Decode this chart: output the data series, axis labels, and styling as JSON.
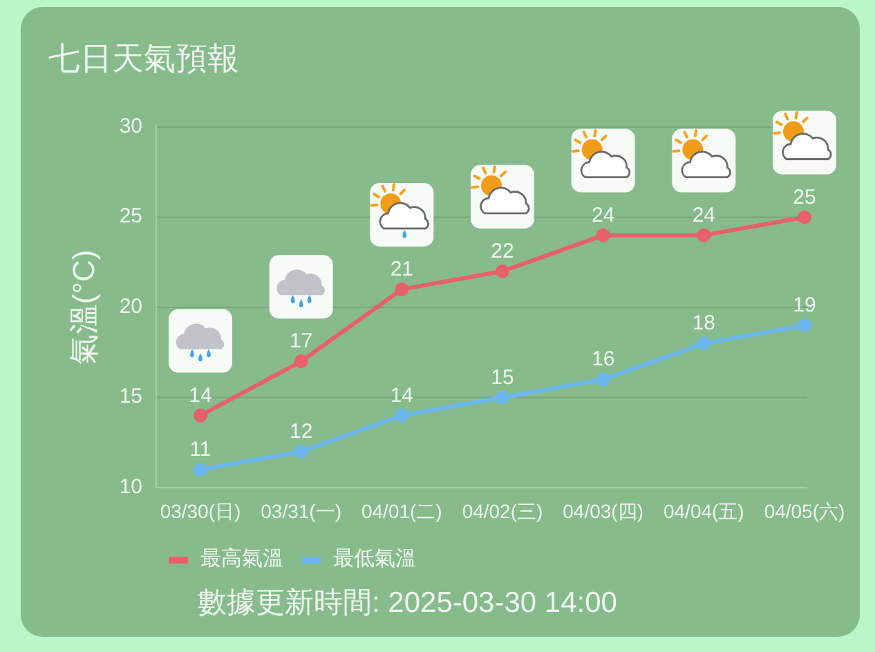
{
  "chart_data": {
    "type": "line",
    "title": "七日天氣預報",
    "ylabel": "氣溫(°C)",
    "categories": [
      "03/30(日)",
      "03/31(一)",
      "04/01(二)",
      "04/02(三)",
      "04/03(四)",
      "04/04(五)",
      "04/05(六)"
    ],
    "series": [
      {
        "name": "最高氣溫",
        "color": "#e8606a",
        "values": [
          14,
          17,
          21,
          22,
          24,
          24,
          25
        ]
      },
      {
        "name": "最低氣溫",
        "color": "#6cb8ee",
        "values": [
          11,
          12,
          14,
          15,
          16,
          18,
          19
        ]
      }
    ],
    "ylim": [
      10,
      30
    ],
    "yticks": [
      10,
      15,
      20,
      25,
      30
    ],
    "grid": "y",
    "legend": "bottom",
    "marker": "circle",
    "data_labels": true,
    "annotations": [
      "數據更新時間: 2025-03-30 14:00"
    ]
  }
}
